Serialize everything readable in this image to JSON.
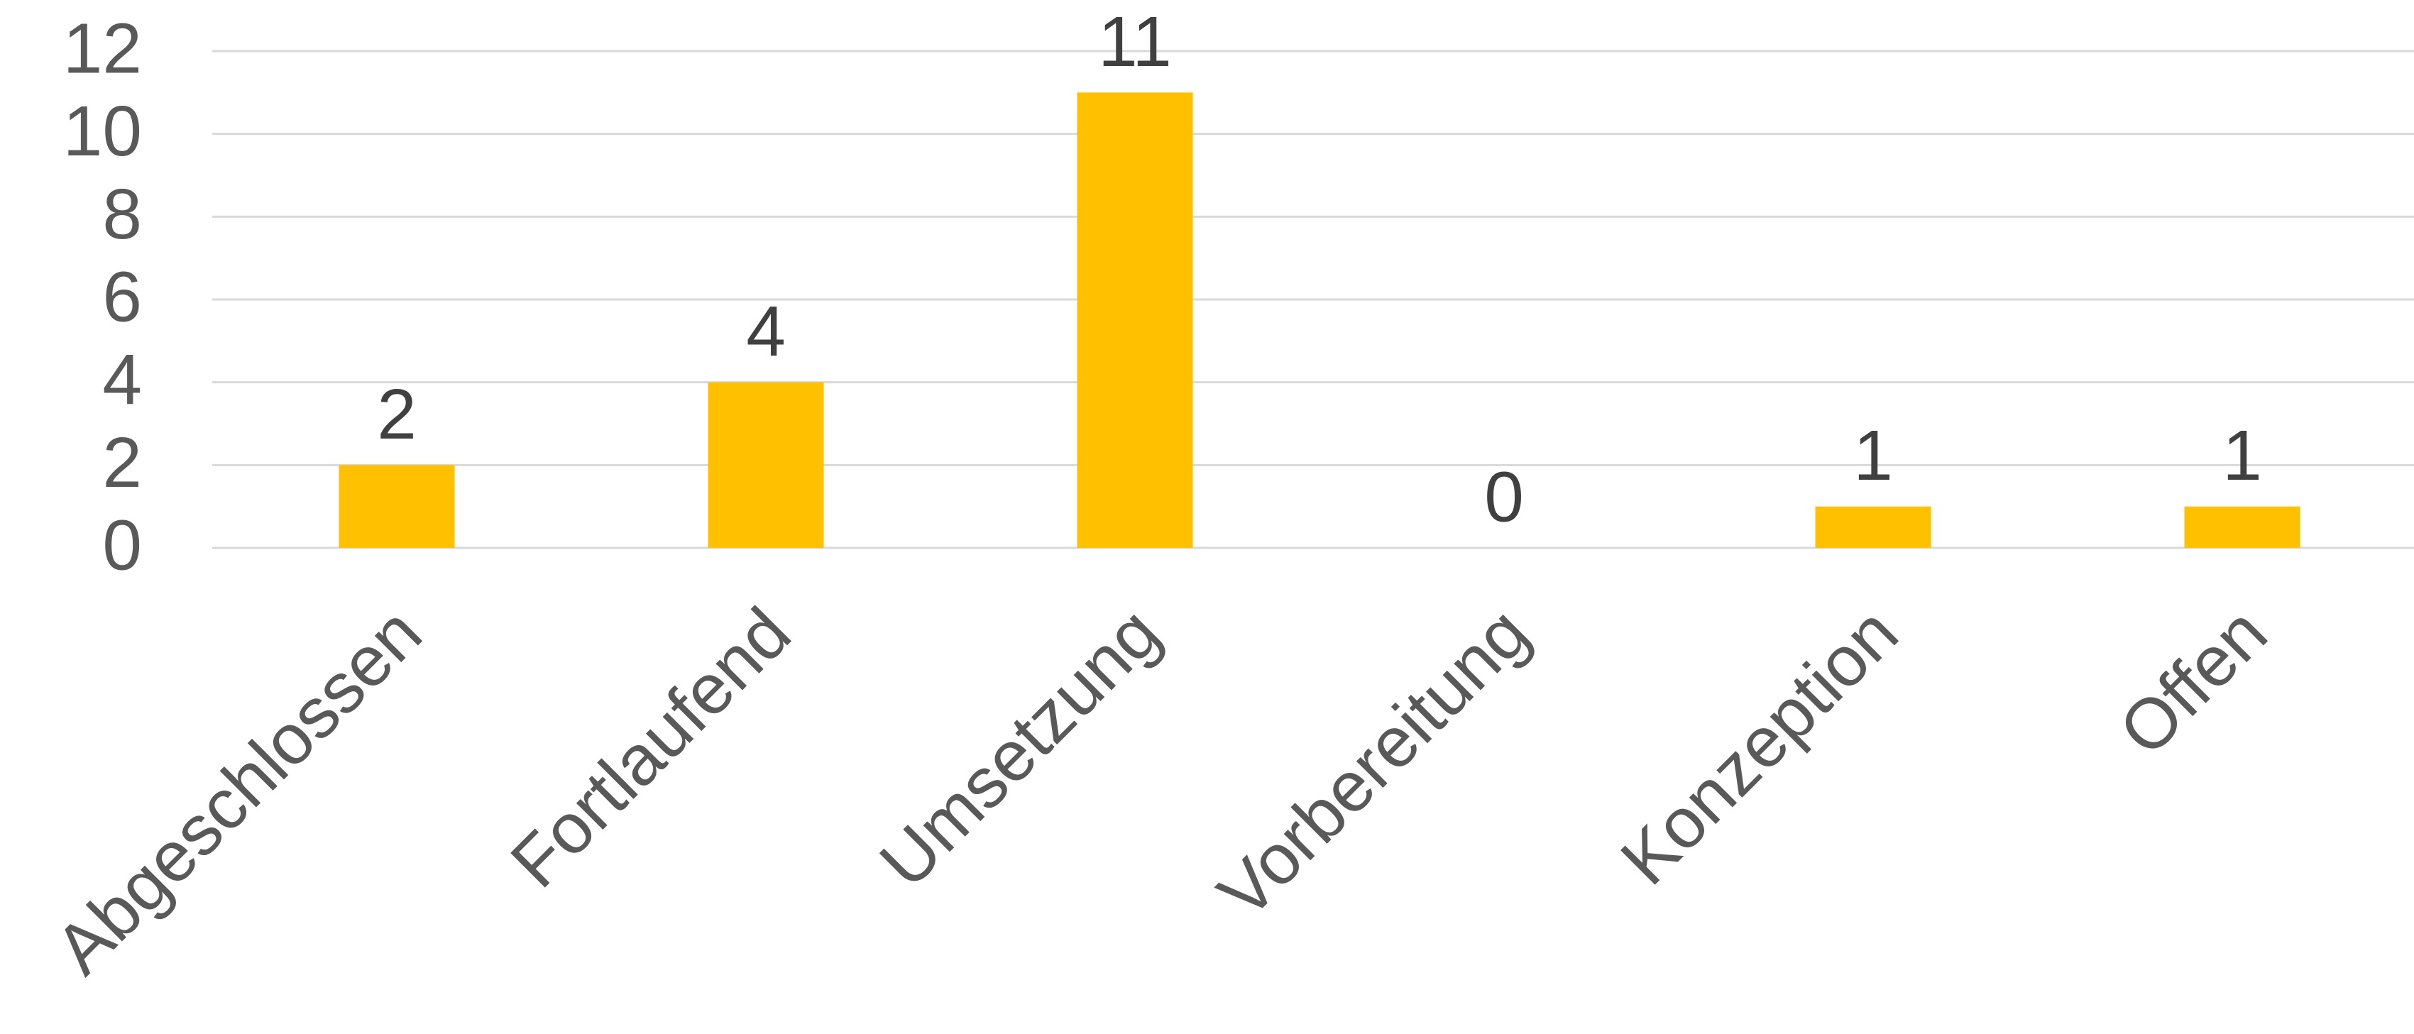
{
  "chart_data": {
    "type": "bar",
    "categories": [
      "Abgeschlossen",
      "Fortlaufend",
      "Umsetzung",
      "Vorbereitung",
      "Konzeption",
      "Offen"
    ],
    "values": [
      2,
      4,
      11,
      0,
      1,
      1
    ],
    "color": "#FFC000",
    "ylim": [
      0,
      12
    ],
    "yticks": [
      0,
      2,
      4,
      6,
      8,
      10,
      12
    ],
    "grid": true,
    "data_labels": true
  }
}
